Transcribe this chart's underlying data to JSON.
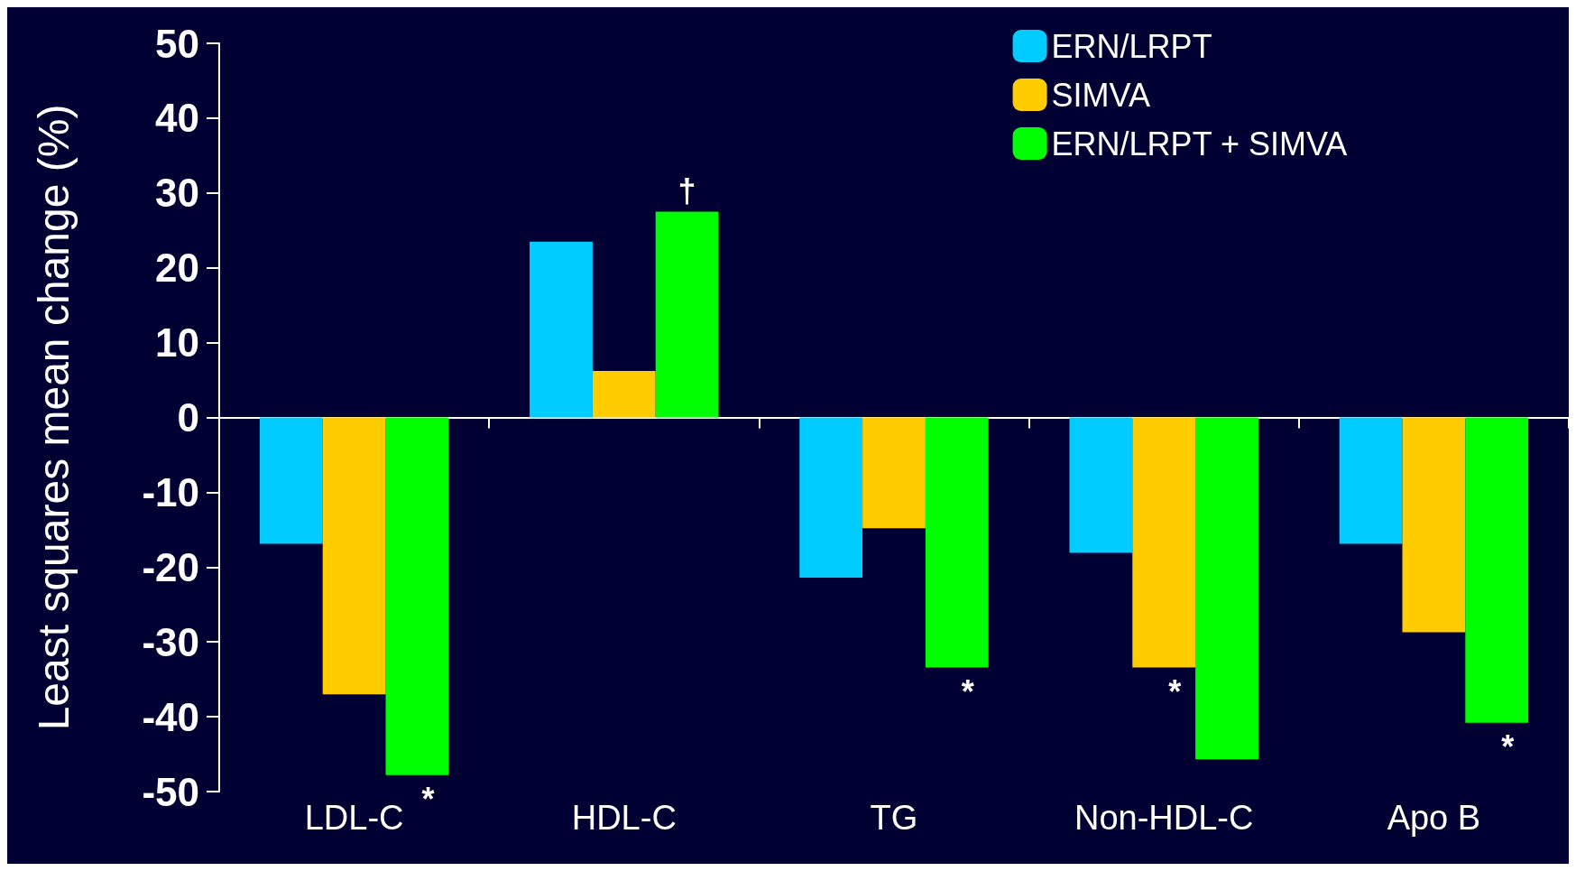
{
  "chart_data": {
    "type": "bar",
    "ylabel": "Least squares mean change (%)",
    "categories": [
      "LDL-C",
      "HDL-C",
      "TG",
      "Non-HDL-C",
      "Apo B"
    ],
    "series": [
      {
        "name": "ERN/LRPT",
        "color": "#00ccff",
        "values": [
          -16.9,
          23.5,
          -21.4,
          -18.1,
          -16.9
        ]
      },
      {
        "name": "SIMVA",
        "color": "#ffcc00",
        "values": [
          -37,
          6.2,
          -14.8,
          -33.4,
          -28.7
        ],
        "value_labels": [
          null,
          null,
          null,
          "*",
          null
        ]
      },
      {
        "name": "ERN/LRPT + SIMVA",
        "color": "#00ff00",
        "values": [
          -47.8,
          27.5,
          -33.4,
          -45.7,
          -40.8
        ],
        "value_labels": [
          "*",
          "†",
          "*",
          null,
          "*"
        ]
      }
    ],
    "ylim": [
      -50,
      50
    ],
    "yticks": [
      -50,
      -40,
      -30,
      -20,
      -10,
      0,
      10,
      20,
      30,
      40,
      50
    ],
    "legend": "top right"
  }
}
